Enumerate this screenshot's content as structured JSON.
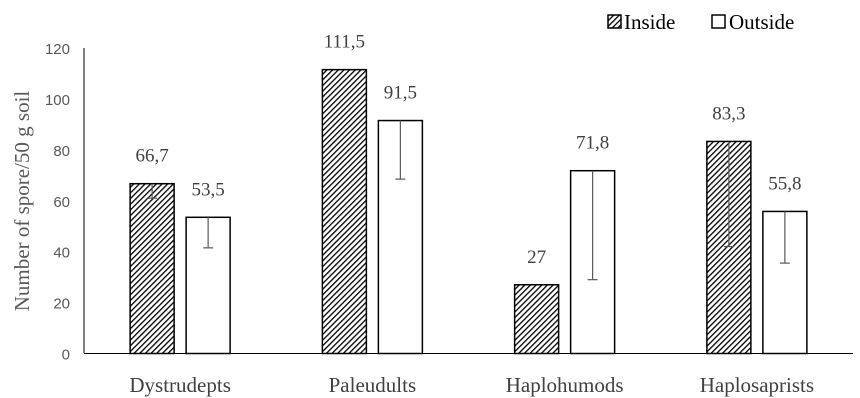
{
  "chart_data": {
    "type": "bar",
    "title": "",
    "xlabel": "",
    "ylabel": "Number of spore/50 g soil",
    "ylim": [
      0,
      120
    ],
    "yticks": [
      0,
      20,
      40,
      60,
      80,
      100,
      120
    ],
    "grid": false,
    "legend_position": "top-right",
    "categories": [
      "Dystrudepts",
      "Paleudults",
      "Haplohumods",
      "Haplosaprists"
    ],
    "series": [
      {
        "name": "Inside",
        "pattern": "diagonal-hatch",
        "color": "#000000",
        "values": [
          66.7,
          111.5,
          27,
          83.3
        ],
        "labels": [
          "66,7",
          "111,5",
          "27",
          "83,3"
        ],
        "error_low": [
          61,
          111.5,
          27,
          42
        ],
        "error_high": [
          66.7,
          111.5,
          27,
          83.3
        ]
      },
      {
        "name": "Outside",
        "pattern": "none",
        "color": "#ffffff",
        "values": [
          53.5,
          91.5,
          71.8,
          55.8
        ],
        "labels": [
          "53,5",
          "91,5",
          "71,8",
          "55,8"
        ],
        "error_low": [
          41.5,
          68.5,
          29,
          35.5
        ],
        "error_high": [
          53.5,
          91.5,
          71.8,
          55.8
        ]
      }
    ]
  }
}
